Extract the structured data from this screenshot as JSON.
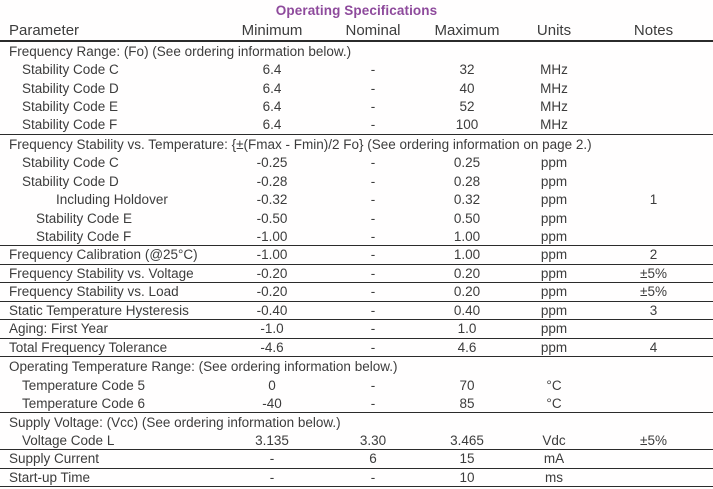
{
  "title": "Operating Specifications",
  "colors": {
    "title": "#8e4a9c",
    "text": "#3c3c3c",
    "line": "#2b2b2b"
  },
  "header": {
    "parameter": "Parameter",
    "minimum": "Minimum",
    "nominal": "Nominal",
    "maximum": "Maximum",
    "units": "Units",
    "notes": "Notes"
  },
  "rows": [
    {
      "kind": "section",
      "label": "Frequency Range: (Fo) (See ordering information below.)",
      "rule": false
    },
    {
      "kind": "data",
      "indent": 1,
      "label": "Stability Code C",
      "min": "6.4",
      "nom": "-",
      "max": "32",
      "units": "MHz",
      "notes": "",
      "rule": false
    },
    {
      "kind": "data",
      "indent": 1,
      "label": "Stability Code D",
      "min": "6.4",
      "nom": "-",
      "max": "40",
      "units": "MHz",
      "notes": "",
      "rule": false
    },
    {
      "kind": "data",
      "indent": 1,
      "label": "Stability Code E",
      "min": "6.4",
      "nom": "-",
      "max": "52",
      "units": "MHz",
      "notes": "",
      "rule": false
    },
    {
      "kind": "data",
      "indent": 1,
      "label": "Stability Code F",
      "min": "6.4",
      "nom": "-",
      "max": "100",
      "units": "MHz",
      "notes": "",
      "rule": true
    },
    {
      "kind": "section",
      "label": "Frequency Stability vs. Temperature: {±(Fmax - Fmin)/2 Fo} (See ordering information on page 2.)",
      "rule": false
    },
    {
      "kind": "data",
      "indent": 1,
      "label": "Stability Code C",
      "min": "-0.25",
      "nom": "-",
      "max": "0.25",
      "units": "ppm",
      "notes": "",
      "rule": false
    },
    {
      "kind": "data",
      "indent": 1,
      "label": "Stability Code D",
      "min": "-0.28",
      "nom": "-",
      "max": "0.28",
      "units": "ppm",
      "notes": "",
      "rule": false
    },
    {
      "kind": "data",
      "indent": 2,
      "label": "Including Holdover",
      "min": "-0.32",
      "nom": "-",
      "max": "0.32",
      "units": "ppm",
      "notes": "1",
      "rule": false
    },
    {
      "kind": "data",
      "indent": 1.5,
      "label": "Stability Code E",
      "min": "-0.50",
      "nom": "-",
      "max": "0.50",
      "units": "ppm",
      "notes": "",
      "rule": false
    },
    {
      "kind": "data",
      "indent": 1.5,
      "label": "Stability Code F",
      "min": "-1.00",
      "nom": "-",
      "max": "1.00",
      "units": "ppm",
      "notes": "",
      "rule": true
    },
    {
      "kind": "data",
      "indent": 0,
      "label": "Frequency Calibration (@25°C)",
      "min": "-1.00",
      "nom": "-",
      "max": "1.00",
      "units": "ppm",
      "notes": "2",
      "rule": true
    },
    {
      "kind": "data",
      "indent": 0,
      "label": "Frequency Stability vs. Voltage",
      "min": "-0.20",
      "nom": "-",
      "max": "0.20",
      "units": "ppm",
      "notes": "±5%",
      "rule": true
    },
    {
      "kind": "data",
      "indent": 0,
      "label": "Frequency Stability vs. Load",
      "min": "-0.20",
      "nom": "-",
      "max": "0.20",
      "units": "ppm",
      "notes": "±5%",
      "rule": true
    },
    {
      "kind": "data",
      "indent": 0,
      "label": "Static Temperature Hysteresis",
      "min": "-0.40",
      "nom": "-",
      "max": "0.40",
      "units": "ppm",
      "notes": "3",
      "rule": true
    },
    {
      "kind": "data",
      "indent": 0,
      "label": "Aging: First Year",
      "min": "-1.0",
      "nom": "-",
      "max": "1.0",
      "units": "ppm",
      "notes": "",
      "rule": true
    },
    {
      "kind": "data",
      "indent": 0,
      "label": "Total Frequency Tolerance",
      "min": "-4.6",
      "nom": "-",
      "max": "4.6",
      "units": "ppm",
      "notes": "4",
      "rule": true
    },
    {
      "kind": "section",
      "label": "Operating Temperature Range: (See ordering information below.)",
      "rule": false
    },
    {
      "kind": "data",
      "indent": 1,
      "label": "Temperature Code 5",
      "min": "0",
      "nom": "-",
      "max": "70",
      "units": "°C",
      "notes": "",
      "rule": false
    },
    {
      "kind": "data",
      "indent": 1,
      "label": "Temperature Code 6",
      "min": "-40",
      "nom": "-",
      "max": "85",
      "units": "°C",
      "notes": "",
      "rule": true
    },
    {
      "kind": "section",
      "label": "Supply Voltage: (Vcc) (See ordering information below.)",
      "rule": false
    },
    {
      "kind": "data",
      "indent": 1,
      "label": "Voltage Code L",
      "min": "3.135",
      "nom": "3.30",
      "max": "3.465",
      "units": "Vdc",
      "notes": "±5%",
      "rule": true
    },
    {
      "kind": "data",
      "indent": 0,
      "label": "Supply Current",
      "min": "-",
      "nom": "6",
      "max": "15",
      "units": "mA",
      "notes": "",
      "rule": true
    },
    {
      "kind": "data",
      "indent": 0,
      "label": "Start-up Time",
      "min": "-",
      "nom": "-",
      "max": "10",
      "units": "ms",
      "notes": "",
      "rule": true
    }
  ]
}
